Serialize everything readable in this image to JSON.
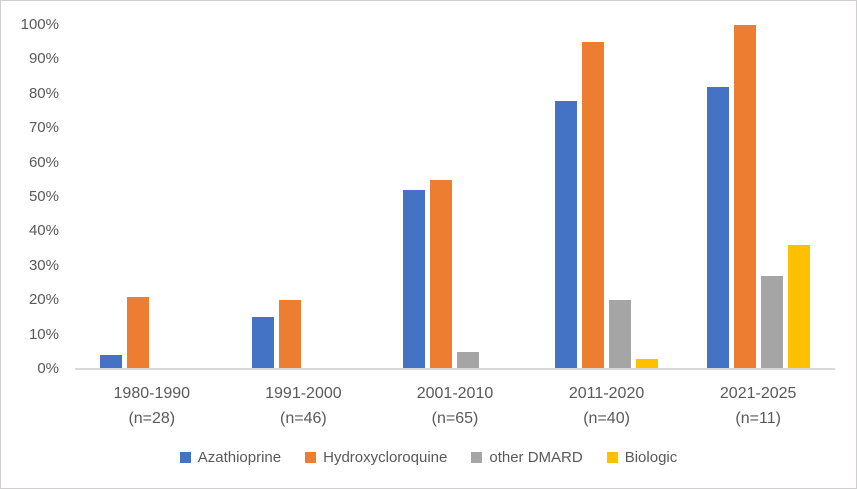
{
  "chart_data": {
    "type": "bar",
    "title": "",
    "categories": [
      "1980-1990",
      "1991-2000",
      "2001-2010",
      "2011-2020",
      "2021-2025"
    ],
    "category_sublabels": [
      "(n=28)",
      "(n=46)",
      "(n=65)",
      "(n=40)",
      "(n=11)"
    ],
    "series": [
      {
        "name": "Azathioprine",
        "color": "#4472C4",
        "values": [
          4,
          15,
          52,
          78,
          82
        ]
      },
      {
        "name": "Hydroxycloroquine",
        "color": "#ED7D31",
        "values": [
          21,
          20,
          55,
          95,
          100
        ]
      },
      {
        "name": "other DMARD",
        "color": "#A5A5A5",
        "values": [
          0,
          0,
          5,
          20,
          27
        ]
      },
      {
        "name": "Biologic",
        "color": "#FFC000",
        "values": [
          0,
          0,
          0,
          3,
          36
        ]
      }
    ],
    "xlabel": "",
    "ylabel": "",
    "ylim": [
      0,
      100
    ],
    "yticks": [
      "0%",
      "10%",
      "20%",
      "30%",
      "40%",
      "50%",
      "60%",
      "70%",
      "80%",
      "90%",
      "100%"
    ],
    "grid": false,
    "legend_position": "bottom"
  },
  "colors": {
    "axis_text": "#595959",
    "axis_line": "#D9D9D9",
    "frame_border": "#D0CECE",
    "background": "#FFFFFF"
  }
}
